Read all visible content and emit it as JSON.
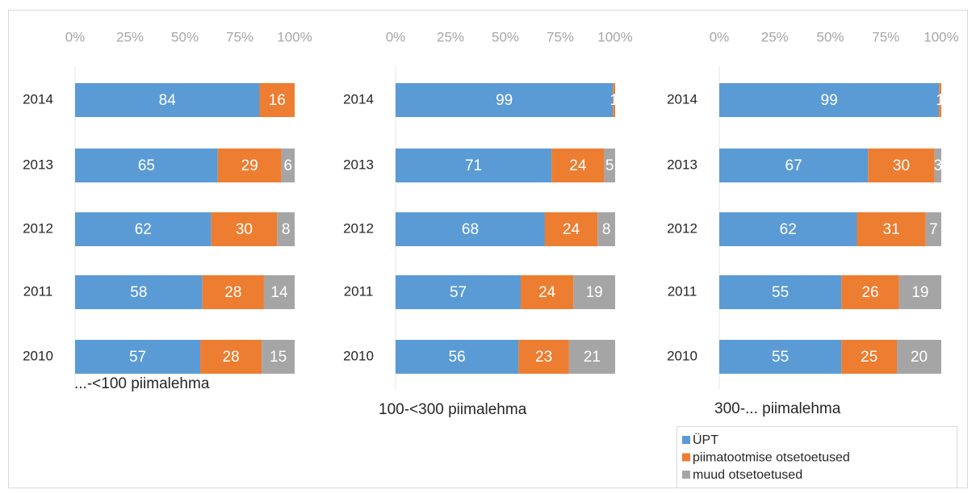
{
  "chart_data": [
    {
      "type": "bar",
      "title": "...-<100 piimalehma",
      "categories": [
        "2014",
        "2013",
        "2012",
        "2011",
        "2010"
      ],
      "series": [
        {
          "color": "#5b9bd5",
          "values": [
            84,
            65,
            62,
            58,
            57
          ]
        },
        {
          "color": "#ed7d31",
          "values": [
            16,
            29,
            30,
            28,
            28
          ]
        },
        {
          "color": "#a5a5a5",
          "values": [
            null,
            6,
            8,
            14,
            15
          ]
        }
      ],
      "xlim": [
        0,
        100
      ],
      "xticks": [
        {
          "value": 0,
          "label": "0%"
        },
        {
          "value": 25,
          "label": "25%"
        },
        {
          "value": 50,
          "label": "50%"
        },
        {
          "value": 75,
          "label": "75%"
        },
        {
          "value": 100,
          "label": "100%"
        }
      ]
    },
    {
      "type": "bar",
      "title": "100-<300 piimalehma",
      "categories": [
        "2014",
        "2013",
        "2012",
        "2011",
        "2010"
      ],
      "series": [
        {
          "color": "#5b9bd5",
          "values": [
            99,
            71,
            68,
            57,
            56
          ]
        },
        {
          "color": "#ed7d31",
          "values": [
            1,
            24,
            24,
            24,
            23
          ]
        },
        {
          "color": "#a5a5a5",
          "values": [
            null,
            5,
            8,
            19,
            21
          ]
        }
      ],
      "xlim": [
        0,
        100
      ],
      "xticks": [
        {
          "value": 0,
          "label": "0%"
        },
        {
          "value": 25,
          "label": "25%"
        },
        {
          "value": 50,
          "label": "50%"
        },
        {
          "value": 75,
          "label": "75%"
        },
        {
          "value": 100,
          "label": "100%"
        }
      ]
    },
    {
      "type": "bar",
      "title": "300-... piimalehma",
      "categories": [
        "2014",
        "2013",
        "2012",
        "2011",
        "2010"
      ],
      "series": [
        {
          "name": "ÜPT",
          "color": "#5b9bd5",
          "values": [
            99,
            67,
            62,
            55,
            55
          ]
        },
        {
          "name": "piimatootmise otsetoetused",
          "color": "#ed7d31",
          "values": [
            1,
            30,
            31,
            26,
            25
          ]
        },
        {
          "name": "muud otsetoetused",
          "color": "#a5a5a5",
          "values": [
            null,
            3,
            7,
            19,
            20
          ]
        }
      ],
      "xlim": [
        0,
        100
      ],
      "xticks": [
        {
          "value": 0,
          "label": "0%"
        },
        {
          "value": 25,
          "label": "25%"
        },
        {
          "value": 50,
          "label": "50%"
        },
        {
          "value": 75,
          "label": "75%"
        },
        {
          "value": 100,
          "label": "100%"
        }
      ]
    }
  ]
}
